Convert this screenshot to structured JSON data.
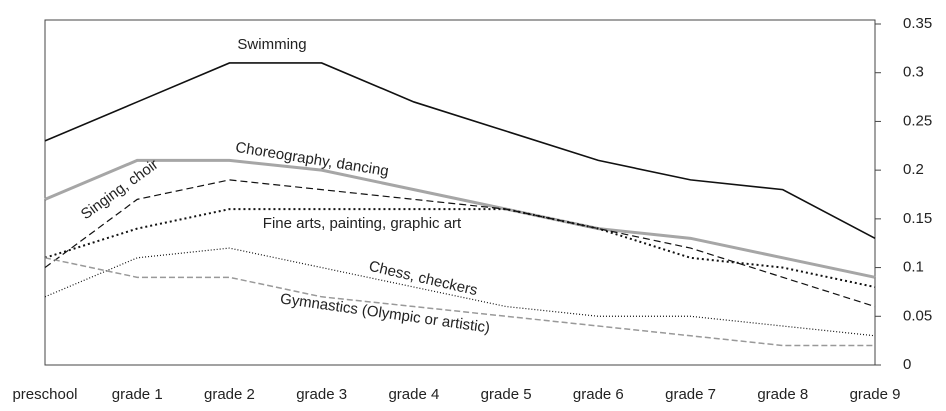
{
  "chart_data": {
    "type": "line",
    "categories": [
      "preschool",
      "grade 1",
      "grade 2",
      "grade 3",
      "grade 4",
      "grade 5",
      "grade 6",
      "grade 7",
      "grade 8",
      "grade 9"
    ],
    "series": [
      {
        "name": "Swimming",
        "color": "#111111",
        "values": [
          0.23,
          0.27,
          0.31,
          0.31,
          0.27,
          0.24,
          0.21,
          0.19,
          0.18,
          0.13
        ]
      },
      {
        "name": "Choreography, dancing",
        "color": "#a6a6a6",
        "values": [
          0.17,
          0.21,
          0.21,
          0.2,
          0.18,
          0.16,
          0.14,
          0.13,
          0.11,
          0.09
        ]
      },
      {
        "name": "Singing, choir",
        "color": "#111111",
        "values": [
          0.1,
          0.17,
          0.19,
          0.18,
          0.17,
          0.16,
          0.14,
          0.12,
          0.09,
          0.06
        ]
      },
      {
        "name": "Fine arts, painting, graphic art",
        "color": "#111111",
        "values": [
          0.11,
          0.14,
          0.16,
          0.16,
          0.16,
          0.16,
          0.14,
          0.11,
          0.1,
          0.08
        ]
      },
      {
        "name": "Chess, checkers",
        "color": "#111111",
        "values": [
          0.07,
          0.11,
          0.12,
          0.1,
          0.08,
          0.06,
          0.05,
          0.05,
          0.04,
          0.03
        ]
      },
      {
        "name": "Gymnastics (Olympic or artistic)",
        "color": "#999999",
        "values": [
          0.11,
          0.09,
          0.09,
          0.07,
          0.06,
          0.05,
          0.04,
          0.03,
          0.02,
          0.02
        ]
      }
    ],
    "ylim": [
      0,
      0.35
    ],
    "yticks": [
      0,
      0.05,
      0.1,
      0.15,
      0.2,
      0.25,
      0.3,
      0.35
    ],
    "grid": false
  }
}
